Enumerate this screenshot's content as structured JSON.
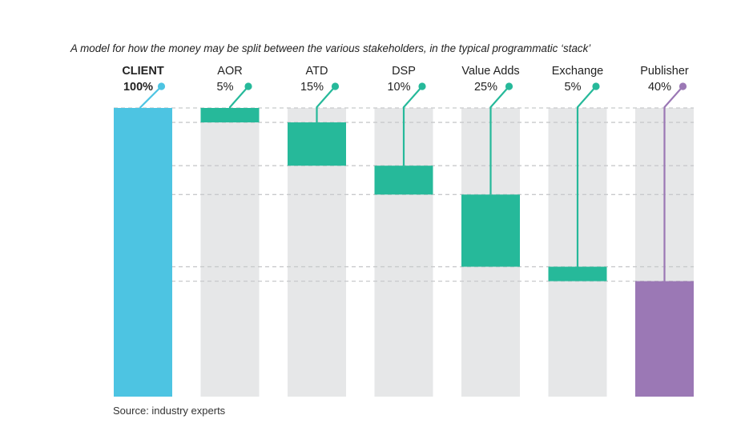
{
  "chart_data": {
    "type": "bar",
    "title": "A model for how the money may be split between the various stakeholders, in the typical programmatic ‘stack’",
    "source": "Source: industry experts",
    "categories": [
      {
        "name": "CLIENT",
        "label": "100%",
        "value": 100,
        "start": 0,
        "color": "#4dc4e2",
        "kind": "total"
      },
      {
        "name": "AOR",
        "label": "5%",
        "value": 5,
        "start": 0,
        "color": "#26b99a",
        "kind": "step"
      },
      {
        "name": "ATD",
        "label": "15%",
        "value": 15,
        "start": 5,
        "color": "#26b99a",
        "kind": "step"
      },
      {
        "name": "DSP",
        "label": "10%",
        "value": 10,
        "start": 20,
        "color": "#26b99a",
        "kind": "step"
      },
      {
        "name": "Value Adds",
        "label": "25%",
        "value": 25,
        "start": 30,
        "color": "#26b99a",
        "kind": "step"
      },
      {
        "name": "Exchange",
        "label": "5%",
        "value": 5,
        "start": 55,
        "color": "#26b99a",
        "kind": "step"
      },
      {
        "name": "Publisher",
        "label": "40%",
        "value": 40,
        "start": 60,
        "color": "#9b78b5",
        "kind": "final"
      }
    ],
    "ylim": [
      0,
      100
    ],
    "background_color": "#e6e7e8",
    "grid": "dashed guides at each boundary"
  }
}
